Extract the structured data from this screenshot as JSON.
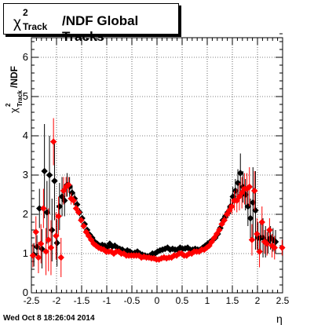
{
  "chart_data": {
    "type": "scatter",
    "title": {
      "chi": "χ",
      "superscript": "2",
      "subscript": "Track",
      "rest": "/NDF  Global Tracks"
    },
    "ylabel": {
      "chi": "χ",
      "superscript": "2",
      "subscript": "Track",
      "rest": "/NDF"
    },
    "xlabel": "η",
    "timestamp": "Wed Oct  8 18:26:04 2014",
    "xlim": [
      -2.5,
      2.5
    ],
    "ylim": [
      0,
      6.5
    ],
    "xticks": [
      "-2.5",
      "-2",
      "-1.5",
      "-1",
      "-0.5",
      "0",
      "0.5",
      "1",
      "1.5",
      "2",
      "2.5"
    ],
    "yticks": [
      "0",
      "1",
      "2",
      "3",
      "4",
      "5",
      "6"
    ],
    "grid": true,
    "series": [
      {
        "color": "#000000",
        "x": [
          -2.45,
          -2.39,
          -2.34,
          -2.29,
          -2.24,
          -2.19,
          -2.14,
          -2.09,
          -2.04,
          -1.99,
          -1.94,
          -1.89,
          -1.84,
          -1.79,
          -1.74,
          -1.69,
          -1.64,
          -1.59,
          -1.54,
          -1.49,
          -1.44,
          -1.39,
          -1.34,
          -1.29,
          -1.24,
          -1.19,
          -1.14,
          -1.09,
          -1.04,
          -0.99,
          -0.94,
          -0.89,
          -0.84,
          -0.79,
          -0.74,
          -0.69,
          -0.64,
          -0.59,
          -0.54,
          -0.49,
          -0.44,
          -0.39,
          -0.34,
          -0.29,
          -0.24,
          -0.19,
          -0.14,
          -0.09,
          -0.04,
          0.01,
          0.06,
          0.11,
          0.16,
          0.21,
          0.26,
          0.31,
          0.36,
          0.41,
          0.46,
          0.51,
          0.56,
          0.61,
          0.66,
          0.71,
          0.76,
          0.81,
          0.86,
          0.91,
          0.96,
          1.01,
          1.06,
          1.11,
          1.16,
          1.21,
          1.26,
          1.31,
          1.36,
          1.41,
          1.46,
          1.51,
          1.56,
          1.61,
          1.66,
          1.71,
          1.76,
          1.81,
          1.86,
          1.91,
          1.96,
          2.01,
          2.06,
          2.11,
          2.16,
          2.21,
          2.26,
          2.31,
          2.36
        ],
        "y": [
          0.97,
          1.17,
          2.15,
          1.12,
          3.1,
          2.05,
          3.0,
          1.6,
          2.85,
          1.27,
          2.2,
          2.45,
          2.35,
          2.75,
          2.7,
          2.55,
          2.4,
          2.25,
          2.05,
          1.9,
          1.75,
          1.6,
          1.48,
          1.4,
          1.3,
          1.25,
          1.2,
          1.22,
          1.2,
          1.15,
          1.25,
          1.18,
          1.2,
          1.15,
          1.12,
          1.1,
          1.05,
          1.08,
          1.05,
          1.0,
          1.02,
          1.05,
          1.0,
          0.97,
          0.95,
          0.93,
          0.95,
          1.0,
          1.0,
          1.05,
          1.08,
          1.1,
          1.12,
          1.15,
          1.1,
          1.12,
          1.1,
          1.1,
          1.15,
          1.12,
          1.13,
          1.15,
          1.1,
          1.1,
          1.12,
          1.1,
          1.1,
          1.15,
          1.2,
          1.25,
          1.3,
          1.35,
          1.4,
          1.5,
          1.65,
          1.85,
          1.95,
          2.05,
          2.2,
          2.45,
          2.6,
          2.8,
          3.05,
          2.7,
          2.5,
          2.2,
          1.9,
          2.3,
          2.1,
          1.4,
          1.4,
          1.4,
          1.3,
          1.3,
          1.4,
          1.35,
          1.3
        ],
        "err": [
          0.3,
          0.3,
          0.5,
          0.5,
          1.2,
          0.8,
          1.0,
          0.8,
          1.0,
          0.6,
          0.6,
          0.5,
          0.4,
          0.3,
          0.25,
          0.2,
          0.15,
          0.1,
          0.1,
          0.08,
          0.06,
          0.05,
          0.05,
          0.04,
          0.04,
          0.04,
          0.03,
          0.03,
          0.03,
          0.03,
          0.03,
          0.03,
          0.03,
          0.03,
          0.03,
          0.03,
          0.03,
          0.03,
          0.03,
          0.03,
          0.03,
          0.03,
          0.03,
          0.03,
          0.03,
          0.03,
          0.03,
          0.03,
          0.03,
          0.03,
          0.03,
          0.03,
          0.03,
          0.03,
          0.03,
          0.03,
          0.03,
          0.03,
          0.03,
          0.03,
          0.03,
          0.03,
          0.03,
          0.03,
          0.03,
          0.03,
          0.03,
          0.03,
          0.03,
          0.04,
          0.04,
          0.05,
          0.05,
          0.06,
          0.08,
          0.1,
          0.12,
          0.15,
          0.2,
          0.25,
          0.3,
          0.35,
          0.5,
          0.4,
          0.4,
          0.5,
          0.5,
          0.9,
          1.0,
          0.4,
          0.4,
          0.5,
          0.4,
          0.3,
          0.3,
          0.3,
          0.3
        ]
      },
      {
        "color": "#ff0000",
        "x": [
          -2.47,
          -2.41,
          -2.36,
          -2.31,
          -2.26,
          -2.21,
          -2.16,
          -2.11,
          -2.06,
          -2.01,
          -1.96,
          -1.91,
          -1.86,
          -1.81,
          -1.76,
          -1.71,
          -1.66,
          -1.61,
          -1.56,
          -1.51,
          -1.46,
          -1.41,
          -1.36,
          -1.31,
          -1.26,
          -1.21,
          -1.16,
          -1.11,
          -1.06,
          -1.01,
          -0.96,
          -0.91,
          -0.86,
          -0.81,
          -0.76,
          -0.71,
          -0.66,
          -0.61,
          -0.56,
          -0.51,
          -0.46,
          -0.41,
          -0.36,
          -0.31,
          -0.26,
          -0.21,
          -0.16,
          -0.11,
          -0.06,
          -0.01,
          0.04,
          0.09,
          0.14,
          0.19,
          0.24,
          0.29,
          0.34,
          0.39,
          0.44,
          0.49,
          0.54,
          0.59,
          0.64,
          0.69,
          0.74,
          0.79,
          0.84,
          0.89,
          0.94,
          0.99,
          1.04,
          1.09,
          1.14,
          1.19,
          1.24,
          1.29,
          1.34,
          1.39,
          1.44,
          1.49,
          1.54,
          1.59,
          1.64,
          1.69,
          1.74,
          1.79,
          1.84,
          1.89,
          1.94,
          1.99,
          2.04,
          2.09,
          2.14,
          2.19,
          2.24,
          2.29,
          2.34,
          2.49
        ],
        "y": [
          0.95,
          1.55,
          0.9,
          1.25,
          2.15,
          1.05,
          1.35,
          1.15,
          3.85,
          1.45,
          1.95,
          0.9,
          2.6,
          2.7,
          2.75,
          2.4,
          2.35,
          2.15,
          2.05,
          1.85,
          1.7,
          1.55,
          1.45,
          1.35,
          1.25,
          1.2,
          1.15,
          1.12,
          1.1,
          1.05,
          1.05,
          1.05,
          1.0,
          1.05,
          1.05,
          1.0,
          1.0,
          0.95,
          0.95,
          0.95,
          0.95,
          0.95,
          0.95,
          0.9,
          0.92,
          0.9,
          0.9,
          0.88,
          0.88,
          0.85,
          0.85,
          0.88,
          0.9,
          0.88,
          0.9,
          0.9,
          0.95,
          0.95,
          1.0,
          1.0,
          0.95,
          0.95,
          1.0,
          1.0,
          1.05,
          1.05,
          1.05,
          1.1,
          1.1,
          1.15,
          1.2,
          1.3,
          1.4,
          1.5,
          1.6,
          1.75,
          1.85,
          2.0,
          2.1,
          2.2,
          2.35,
          2.35,
          2.45,
          2.55,
          2.65,
          2.65,
          2.7,
          1.35,
          2.6,
          1.5,
          1.05,
          1.8,
          1.3,
          1.25,
          1.6,
          1.2,
          1.15,
          1.15
        ],
        "err": [
          0.3,
          0.4,
          0.4,
          0.5,
          0.5,
          0.6,
          0.8,
          0.7,
          0.6,
          0.6,
          0.5,
          0.5,
          0.35,
          0.25,
          0.2,
          0.15,
          0.12,
          0.1,
          0.08,
          0.07,
          0.06,
          0.05,
          0.05,
          0.04,
          0.04,
          0.04,
          0.03,
          0.03,
          0.03,
          0.03,
          0.03,
          0.03,
          0.03,
          0.03,
          0.03,
          0.03,
          0.03,
          0.03,
          0.03,
          0.03,
          0.03,
          0.03,
          0.03,
          0.03,
          0.03,
          0.03,
          0.03,
          0.03,
          0.03,
          0.03,
          0.03,
          0.03,
          0.03,
          0.03,
          0.03,
          0.03,
          0.03,
          0.03,
          0.03,
          0.03,
          0.03,
          0.03,
          0.03,
          0.03,
          0.03,
          0.03,
          0.03,
          0.03,
          0.03,
          0.04,
          0.04,
          0.05,
          0.05,
          0.06,
          0.07,
          0.08,
          0.1,
          0.12,
          0.15,
          0.2,
          0.25,
          0.3,
          0.35,
          0.4,
          0.4,
          0.4,
          0.5,
          0.4,
          0.5,
          0.4,
          0.4,
          0.4,
          0.3,
          0.3,
          0.3,
          0.3,
          0.3,
          0.2
        ]
      }
    ]
  }
}
